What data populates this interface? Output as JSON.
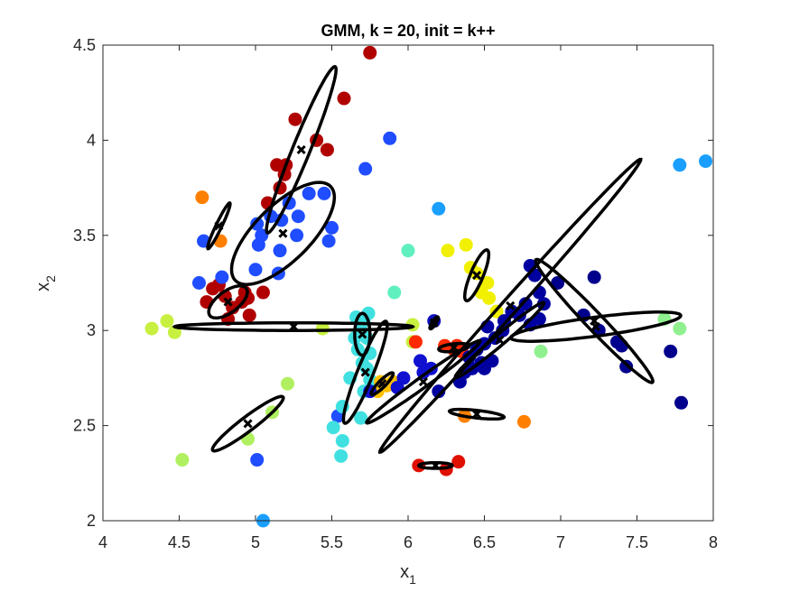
{
  "chart_data": {
    "type": "scatter",
    "title": "GMM, k = 20, init = k++",
    "xlabel": {
      "main": "x",
      "sub": "1"
    },
    "ylabel": {
      "main": "x",
      "sub": "2"
    },
    "xlim": [
      4,
      8
    ],
    "ylim": [
      2,
      4.5
    ],
    "xticks": [
      4,
      4.5,
      5,
      5.5,
      6,
      6.5,
      7,
      7.5,
      8
    ],
    "xtick_labels": [
      "4",
      "4.5",
      "5",
      "5.5",
      "6",
      "6.5",
      "7",
      "7.5",
      "8"
    ],
    "yticks": [
      2,
      2.5,
      3,
      3.5,
      4,
      4.5
    ],
    "ytick_labels": [
      "2",
      "2.5",
      "3",
      "3.5",
      "4",
      "4.5"
    ],
    "grid": false,
    "box": true,
    "points": [
      {
        "x": 5.75,
        "y": 4.46,
        "c": "#b00000"
      },
      {
        "x": 5.58,
        "y": 4.22,
        "c": "#b00000"
      },
      {
        "x": 5.26,
        "y": 4.11,
        "c": "#b00000"
      },
      {
        "x": 5.4,
        "y": 4.0,
        "c": "#b00000"
      },
      {
        "x": 5.47,
        "y": 3.95,
        "c": "#b00000"
      },
      {
        "x": 5.14,
        "y": 3.87,
        "c": "#b00000"
      },
      {
        "x": 5.2,
        "y": 3.87,
        "c": "#b00000"
      },
      {
        "x": 5.19,
        "y": 3.82,
        "c": "#b00000"
      },
      {
        "x": 5.16,
        "y": 3.75,
        "c": "#b00000"
      },
      {
        "x": 5.08,
        "y": 3.67,
        "c": "#b00000"
      },
      {
        "x": 4.72,
        "y": 3.22,
        "c": "#b00000"
      },
      {
        "x": 4.76,
        "y": 3.24,
        "c": "#b00000"
      },
      {
        "x": 4.8,
        "y": 3.18,
        "c": "#b00000"
      },
      {
        "x": 4.85,
        "y": 3.12,
        "c": "#b00000"
      },
      {
        "x": 4.68,
        "y": 3.15,
        "c": "#b00000"
      },
      {
        "x": 4.82,
        "y": 3.06,
        "c": "#b00000"
      },
      {
        "x": 4.93,
        "y": 3.2,
        "c": "#b00000"
      },
      {
        "x": 4.95,
        "y": 3.17,
        "c": "#b00000"
      },
      {
        "x": 4.96,
        "y": 3.08,
        "c": "#b00000"
      },
      {
        "x": 5.05,
        "y": 3.2,
        "c": "#b00000"
      },
      {
        "x": 4.91,
        "y": 3.15,
        "c": "#b00000"
      },
      {
        "x": 5.88,
        "y": 4.01,
        "c": "#1f4dff"
      },
      {
        "x": 5.72,
        "y": 3.85,
        "c": "#1f4dff"
      },
      {
        "x": 5.35,
        "y": 3.72,
        "c": "#1f4dff"
      },
      {
        "x": 5.45,
        "y": 3.72,
        "c": "#1f4dff"
      },
      {
        "x": 5.22,
        "y": 3.67,
        "c": "#1f4dff"
      },
      {
        "x": 5.1,
        "y": 3.6,
        "c": "#1f4dff"
      },
      {
        "x": 5.17,
        "y": 3.58,
        "c": "#1f4dff"
      },
      {
        "x": 5.28,
        "y": 3.6,
        "c": "#1f4dff"
      },
      {
        "x": 5.01,
        "y": 3.56,
        "c": "#1f4dff"
      },
      {
        "x": 5.04,
        "y": 3.5,
        "c": "#1f4dff"
      },
      {
        "x": 5.27,
        "y": 3.5,
        "c": "#1f4dff"
      },
      {
        "x": 5.5,
        "y": 3.54,
        "c": "#1f4dff"
      },
      {
        "x": 5.48,
        "y": 3.47,
        "c": "#1f4dff"
      },
      {
        "x": 5.02,
        "y": 3.45,
        "c": "#1f4dff"
      },
      {
        "x": 5.16,
        "y": 3.42,
        "c": "#1f4dff"
      },
      {
        "x": 4.66,
        "y": 3.47,
        "c": "#1f4dff"
      },
      {
        "x": 5.0,
        "y": 3.32,
        "c": "#1f4dff"
      },
      {
        "x": 5.15,
        "y": 3.3,
        "c": "#1f4dff"
      },
      {
        "x": 4.78,
        "y": 3.28,
        "c": "#1f4dff"
      },
      {
        "x": 4.63,
        "y": 3.25,
        "c": "#1f4dff"
      },
      {
        "x": 5.01,
        "y": 2.32,
        "c": "#1f4dff"
      },
      {
        "x": 5.54,
        "y": 2.55,
        "c": "#1f4dff"
      },
      {
        "x": 4.65,
        "y": 3.7,
        "c": "#ff8000"
      },
      {
        "x": 4.77,
        "y": 3.47,
        "c": "#ff8000"
      },
      {
        "x": 6.37,
        "y": 2.55,
        "c": "#ff8000"
      },
      {
        "x": 6.76,
        "y": 2.52,
        "c": "#ff8000"
      },
      {
        "x": 4.32,
        "y": 3.01,
        "c": "#c8f040"
      },
      {
        "x": 4.42,
        "y": 3.05,
        "c": "#c8f040"
      },
      {
        "x": 4.47,
        "y": 2.99,
        "c": "#c8f040"
      },
      {
        "x": 4.52,
        "y": 2.32,
        "c": "#b0f060"
      },
      {
        "x": 4.95,
        "y": 2.43,
        "c": "#b0f060"
      },
      {
        "x": 5.11,
        "y": 2.57,
        "c": "#b0f060"
      },
      {
        "x": 5.21,
        "y": 2.72,
        "c": "#b0f060"
      },
      {
        "x": 5.44,
        "y": 3.01,
        "c": "#c8f040"
      },
      {
        "x": 6.03,
        "y": 3.03,
        "c": "#c8f040"
      },
      {
        "x": 6.03,
        "y": 2.94,
        "c": "#c8f040"
      },
      {
        "x": 6.0,
        "y": 3.42,
        "c": "#60f0c0"
      },
      {
        "x": 5.91,
        "y": 3.2,
        "c": "#60f0c0"
      },
      {
        "x": 5.74,
        "y": 3.09,
        "c": "#40e0e0"
      },
      {
        "x": 5.66,
        "y": 3.07,
        "c": "#40e0e0"
      },
      {
        "x": 5.71,
        "y": 3.05,
        "c": "#40e0e0"
      },
      {
        "x": 5.69,
        "y": 3.0,
        "c": "#40e0e0"
      },
      {
        "x": 5.65,
        "y": 2.96,
        "c": "#40e0e0"
      },
      {
        "x": 5.73,
        "y": 2.96,
        "c": "#40e0e0"
      },
      {
        "x": 5.67,
        "y": 2.9,
        "c": "#40e0e0"
      },
      {
        "x": 5.75,
        "y": 2.88,
        "c": "#40e0e0"
      },
      {
        "x": 5.7,
        "y": 2.83,
        "c": "#40e0e0"
      },
      {
        "x": 5.73,
        "y": 2.8,
        "c": "#40e0e0"
      },
      {
        "x": 5.75,
        "y": 2.74,
        "c": "#40e0e0"
      },
      {
        "x": 5.62,
        "y": 2.75,
        "c": "#40e0e0"
      },
      {
        "x": 5.71,
        "y": 2.68,
        "c": "#40e0e0"
      },
      {
        "x": 5.57,
        "y": 2.6,
        "c": "#40e0e0"
      },
      {
        "x": 5.69,
        "y": 2.54,
        "c": "#40e0e0"
      },
      {
        "x": 5.51,
        "y": 2.49,
        "c": "#40e0e0"
      },
      {
        "x": 5.57,
        "y": 2.42,
        "c": "#40e0e0"
      },
      {
        "x": 5.56,
        "y": 2.34,
        "c": "#40e0e0"
      },
      {
        "x": 5.05,
        "y": 2.0,
        "c": "#1a9fff"
      },
      {
        "x": 6.2,
        "y": 3.64,
        "c": "#1a9fff"
      },
      {
        "x": 7.78,
        "y": 3.87,
        "c": "#1a9fff"
      },
      {
        "x": 7.95,
        "y": 3.89,
        "c": "#1a9fff"
      },
      {
        "x": 5.82,
        "y": 2.73,
        "c": "#ffc000"
      },
      {
        "x": 5.86,
        "y": 2.71,
        "c": "#ffc000"
      },
      {
        "x": 5.8,
        "y": 2.68,
        "c": "#ffc000"
      },
      {
        "x": 5.9,
        "y": 2.73,
        "c": "#ffc000"
      },
      {
        "x": 6.26,
        "y": 3.42,
        "c": "#f0f000"
      },
      {
        "x": 6.38,
        "y": 3.45,
        "c": "#f0f000"
      },
      {
        "x": 6.41,
        "y": 3.33,
        "c": "#f0f000"
      },
      {
        "x": 6.45,
        "y": 3.3,
        "c": "#f0f000"
      },
      {
        "x": 6.52,
        "y": 3.25,
        "c": "#f0f000"
      },
      {
        "x": 6.48,
        "y": 3.2,
        "c": "#f0f000"
      },
      {
        "x": 6.53,
        "y": 3.17,
        "c": "#f0f000"
      },
      {
        "x": 6.58,
        "y": 3.1,
        "c": "#f0f000"
      },
      {
        "x": 6.05,
        "y": 2.94,
        "c": "#ff2a00"
      },
      {
        "x": 6.24,
        "y": 2.92,
        "c": "#ff2a00"
      },
      {
        "x": 6.32,
        "y": 2.92,
        "c": "#ff2a00"
      },
      {
        "x": 6.35,
        "y": 2.89,
        "c": "#ff2a00"
      },
      {
        "x": 6.3,
        "y": 2.9,
        "c": "#ff2a00"
      },
      {
        "x": 6.07,
        "y": 2.29,
        "c": "#e01000"
      },
      {
        "x": 6.25,
        "y": 2.27,
        "c": "#e01000"
      },
      {
        "x": 6.33,
        "y": 2.31,
        "c": "#e01000"
      },
      {
        "x": 6.17,
        "y": 3.05,
        "c": "#1010c0"
      },
      {
        "x": 6.8,
        "y": 3.34,
        "c": "#0000a0"
      },
      {
        "x": 6.83,
        "y": 3.29,
        "c": "#0000a0"
      },
      {
        "x": 6.86,
        "y": 3.2,
        "c": "#0000a0"
      },
      {
        "x": 6.89,
        "y": 3.14,
        "c": "#0000a0"
      },
      {
        "x": 6.77,
        "y": 3.14,
        "c": "#0000a0"
      },
      {
        "x": 6.68,
        "y": 3.1,
        "c": "#0000a0"
      },
      {
        "x": 6.73,
        "y": 3.08,
        "c": "#0000a0"
      },
      {
        "x": 6.63,
        "y": 3.05,
        "c": "#0000a0"
      },
      {
        "x": 6.8,
        "y": 3.03,
        "c": "#0000a0"
      },
      {
        "x": 6.86,
        "y": 3.06,
        "c": "#0000a0"
      },
      {
        "x": 6.52,
        "y": 3.02,
        "c": "#0000a0"
      },
      {
        "x": 6.62,
        "y": 3.0,
        "c": "#0000a0"
      },
      {
        "x": 6.57,
        "y": 2.96,
        "c": "#0000a0"
      },
      {
        "x": 6.5,
        "y": 2.93,
        "c": "#0000a0"
      },
      {
        "x": 6.45,
        "y": 2.9,
        "c": "#0000a0"
      },
      {
        "x": 6.4,
        "y": 2.86,
        "c": "#0000a0"
      },
      {
        "x": 6.48,
        "y": 2.83,
        "c": "#0000a0"
      },
      {
        "x": 6.55,
        "y": 2.84,
        "c": "#0000a0"
      },
      {
        "x": 6.42,
        "y": 2.8,
        "c": "#0000a0"
      },
      {
        "x": 6.37,
        "y": 2.78,
        "c": "#0000a0"
      },
      {
        "x": 6.34,
        "y": 2.73,
        "c": "#0000a0"
      },
      {
        "x": 6.5,
        "y": 2.8,
        "c": "#0000a0"
      },
      {
        "x": 6.2,
        "y": 2.68,
        "c": "#0000a0"
      },
      {
        "x": 6.08,
        "y": 2.84,
        "c": "#1010d0"
      },
      {
        "x": 6.1,
        "y": 2.78,
        "c": "#1010d0"
      },
      {
        "x": 6.15,
        "y": 2.8,
        "c": "#1010d0"
      },
      {
        "x": 5.93,
        "y": 2.7,
        "c": "#1010d0"
      },
      {
        "x": 5.75,
        "y": 2.68,
        "c": "#1010d0"
      },
      {
        "x": 5.97,
        "y": 2.75,
        "c": "#1010d0"
      },
      {
        "x": 6.98,
        "y": 3.25,
        "c": "#00008c"
      },
      {
        "x": 7.22,
        "y": 3.28,
        "c": "#00008c"
      },
      {
        "x": 7.15,
        "y": 3.08,
        "c": "#00008c"
      },
      {
        "x": 7.25,
        "y": 3.0,
        "c": "#00008c"
      },
      {
        "x": 7.37,
        "y": 2.94,
        "c": "#00008c"
      },
      {
        "x": 7.4,
        "y": 2.92,
        "c": "#00008c"
      },
      {
        "x": 7.43,
        "y": 2.81,
        "c": "#00008c"
      },
      {
        "x": 7.72,
        "y": 2.89,
        "c": "#00008c"
      },
      {
        "x": 7.79,
        "y": 2.62,
        "c": "#00008c"
      },
      {
        "x": 7.68,
        "y": 3.06,
        "c": "#90f090"
      },
      {
        "x": 7.78,
        "y": 3.01,
        "c": "#90f090"
      },
      {
        "x": 6.87,
        "y": 2.89,
        "c": "#90f090"
      }
    ],
    "ellipses": [
      {
        "cx": 5.3,
        "cy": 3.95,
        "a": 0.49,
        "b": 0.055,
        "angle": 63
      },
      {
        "cx": 5.18,
        "cy": 3.51,
        "a": 0.4,
        "b": 0.16,
        "angle": 36
      },
      {
        "cx": 4.76,
        "cy": 3.55,
        "a": 0.14,
        "b": 0.018,
        "angle": 59
      },
      {
        "cx": 4.82,
        "cy": 3.15,
        "a": 0.14,
        "b": 0.06,
        "angle": 28
      },
      {
        "cx": 5.25,
        "cy": 3.02,
        "a": 0.78,
        "b": 0.02,
        "angle": 0
      },
      {
        "cx": 4.95,
        "cy": 2.51,
        "a": 0.27,
        "b": 0.04,
        "angle": 31
      },
      {
        "cx": 5.7,
        "cy": 2.98,
        "a": 0.05,
        "b": 0.11,
        "angle": 0
      },
      {
        "cx": 5.72,
        "cy": 2.78,
        "a": 0.3,
        "b": 0.05,
        "angle": 63
      },
      {
        "cx": 5.83,
        "cy": 2.72,
        "a": 0.09,
        "b": 0.02,
        "angle": 38
      },
      {
        "cx": 6.17,
        "cy": 3.04,
        "a": 0.04,
        "b": 0.012,
        "angle": 50
      },
      {
        "cx": 6.45,
        "cy": 3.29,
        "a": 0.15,
        "b": 0.04,
        "angle": 62
      },
      {
        "cx": 6.67,
        "cy": 3.13,
        "a": 1.15,
        "b": 0.045,
        "angle": 42
      },
      {
        "cx": 6.3,
        "cy": 2.91,
        "a": 0.1,
        "b": 0.02,
        "angle": 5
      },
      {
        "cx": 6.6,
        "cy": 2.95,
        "a": 0.35,
        "b": 0.03,
        "angle": 34
      },
      {
        "cx": 6.1,
        "cy": 2.73,
        "a": 0.43,
        "b": 0.03,
        "angle": 30
      },
      {
        "cx": 6.45,
        "cy": 2.56,
        "a": 0.18,
        "b": 0.02,
        "angle": -5
      },
      {
        "cx": 6.18,
        "cy": 2.29,
        "a": 0.11,
        "b": 0.015,
        "angle": 0
      },
      {
        "cx": 7.23,
        "cy": 3.02,
        "a": 0.56,
        "b": 0.05,
        "angle": 6
      },
      {
        "cx": 7.22,
        "cy": 3.05,
        "a": 0.5,
        "b": 0.05,
        "angle": -40
      }
    ]
  }
}
